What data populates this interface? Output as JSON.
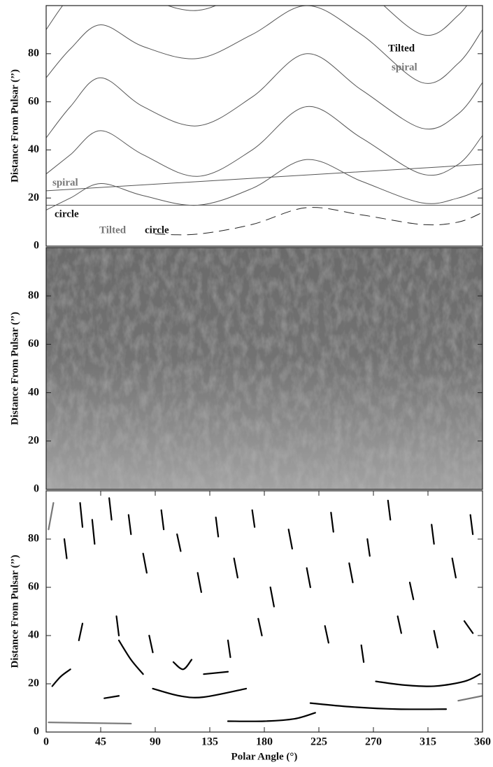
{
  "chart_data": [
    {
      "type": "line",
      "ylabel": "Distance From Pulsar (’’)",
      "xlim": [
        0,
        360
      ],
      "ylim": [
        0,
        100
      ],
      "yticks": [
        0,
        20,
        40,
        60,
        80
      ],
      "series": [
        {
          "color": "#555555",
          "x": [
            0,
            20,
            45,
            80,
            125,
            170,
            215,
            260,
            310,
            340,
            360
          ],
          "values": [
            15,
            20,
            26,
            21,
            17,
            24,
            36,
            27,
            18,
            20,
            24
          ]
        },
        {
          "color": "#555555",
          "x": [
            0,
            20,
            45,
            80,
            125,
            170,
            215,
            260,
            310,
            340,
            360
          ],
          "values": [
            30,
            38,
            48,
            38,
            29,
            40,
            58,
            45,
            30,
            34,
            46
          ]
        },
        {
          "color": "#555555",
          "x": [
            0,
            20,
            45,
            80,
            125,
            170,
            215,
            260,
            310,
            340,
            360
          ],
          "values": [
            45,
            58,
            70,
            58,
            50,
            62,
            80,
            65,
            49,
            55,
            68
          ]
        },
        {
          "color": "#555555",
          "x": [
            0,
            20,
            45,
            80,
            125,
            170,
            215,
            260,
            310,
            340,
            360
          ],
          "values": [
            70,
            82,
            92,
            83,
            78,
            88,
            100,
            88,
            68,
            76,
            90
          ]
        },
        {
          "color": "#555555",
          "x": [
            0,
            20,
            45,
            80,
            125,
            170,
            215,
            260,
            310,
            340,
            360
          ],
          "values": [
            90,
            104,
            114,
            104,
            98,
            108,
            122,
            108,
            88,
            96,
            110
          ]
        },
        {
          "color": "#555555",
          "x": [
            0,
            360
          ],
          "values": [
            23,
            34
          ]
        },
        {
          "color": "#555555",
          "x": [
            0,
            360
          ],
          "values": [
            17,
            17
          ]
        },
        {
          "color": "#222222",
          "style": "dashed",
          "x": [
            90,
            125,
            170,
            215,
            260,
            310,
            340,
            360
          ],
          "values": [
            5,
            5,
            9,
            16,
            13,
            9,
            10,
            14
          ]
        }
      ],
      "annotations": [
        {
          "text": "Tilted",
          "color": "#111111"
        },
        {
          "text": "spiral",
          "color": "#777777"
        },
        {
          "text": "spiral",
          "color": "#777777"
        },
        {
          "text": "circle",
          "color": "#111111"
        },
        {
          "text": "Tilted",
          "color": "#777777"
        },
        {
          "text": "circle",
          "color": "#111111"
        }
      ]
    },
    {
      "type": "image",
      "ylabel": "Distance From Pulsar (’’)",
      "xlim": [
        0,
        360
      ],
      "ylim": [
        0,
        100
      ],
      "yticks": [
        0,
        20,
        40,
        60,
        80
      ]
    },
    {
      "type": "line",
      "ylabel": "Distance From Pulsar (’’)",
      "xlabel": "Polar Angle (°)",
      "xlim": [
        0,
        360
      ],
      "ylim": [
        0,
        100
      ],
      "yticks": [
        0,
        20,
        40,
        60,
        80
      ],
      "xticks": [
        0,
        45,
        90,
        135,
        180,
        225,
        270,
        315,
        360
      ],
      "series": [
        {
          "color": "#000000",
          "width": 2.2,
          "x": [
            15,
            17,
            null,
            28,
            30,
            null,
            38,
            40,
            null,
            52,
            54,
            null,
            68,
            70,
            null,
            80,
            83,
            null,
            95,
            97,
            null,
            108,
            111,
            null,
            125,
            128,
            null,
            140,
            142,
            null,
            155,
            158,
            null,
            170,
            172,
            null,
            185,
            188,
            null,
            200,
            203,
            null,
            215,
            218,
            null,
            235,
            237,
            null,
            250,
            253,
            null,
            265,
            267,
            null,
            282,
            284,
            null,
            300,
            303,
            null,
            318,
            320,
            null,
            335,
            338,
            null,
            350,
            352,
            null,
            30,
            27,
            null,
            58,
            60,
            null,
            85,
            88,
            null,
            105,
            113,
            120,
            null,
            150,
            152,
            null,
            175,
            178,
            null,
            230,
            233,
            null,
            260,
            262,
            null,
            290,
            293,
            null,
            320,
            323,
            null,
            345,
            352,
            null,
            60,
            70,
            80,
            null,
            130,
            150,
            null,
            88,
            110,
            130,
            165,
            null,
            218,
            250,
            290,
            330,
            null,
            272,
            295,
            320,
            345,
            358,
            null,
            150,
            180,
            205,
            222,
            null,
            5,
            12,
            20,
            null,
            48,
            60
          ],
          "values": [
            80,
            72,
            null,
            95,
            85,
            null,
            88,
            78,
            null,
            97,
            88,
            null,
            90,
            82,
            null,
            74,
            66,
            null,
            92,
            84,
            null,
            82,
            75,
            null,
            66,
            58,
            null,
            89,
            81,
            null,
            72,
            64,
            null,
            92,
            85,
            null,
            60,
            52,
            null,
            84,
            76,
            null,
            68,
            60,
            null,
            91,
            83,
            null,
            70,
            62,
            null,
            80,
            73,
            null,
            96,
            88,
            null,
            62,
            55,
            null,
            86,
            78,
            null,
            72,
            64,
            null,
            90,
            82,
            null,
            45,
            38,
            null,
            48,
            40,
            null,
            40,
            33,
            null,
            29,
            26,
            30,
            null,
            38,
            31,
            null,
            47,
            40,
            null,
            44,
            37,
            null,
            36,
            29,
            null,
            48,
            41,
            null,
            42,
            35,
            null,
            46,
            41,
            null,
            38,
            30,
            24,
            null,
            24,
            25,
            null,
            18,
            15,
            14.5,
            18,
            null,
            12,
            10.5,
            9.5,
            9.5,
            null,
            21,
            19.5,
            19,
            21,
            24,
            null,
            4.5,
            4.5,
            5.5,
            8,
            null,
            19,
            23,
            26,
            null,
            14,
            15
          ]
        },
        {
          "color": "#777777",
          "width": 2.2,
          "x": [
            2,
            70,
            null,
            340,
            360,
            null,
            2,
            6
          ],
          "values": [
            4,
            3.5,
            null,
            13,
            15,
            null,
            84,
            95
          ]
        }
      ]
    }
  ]
}
